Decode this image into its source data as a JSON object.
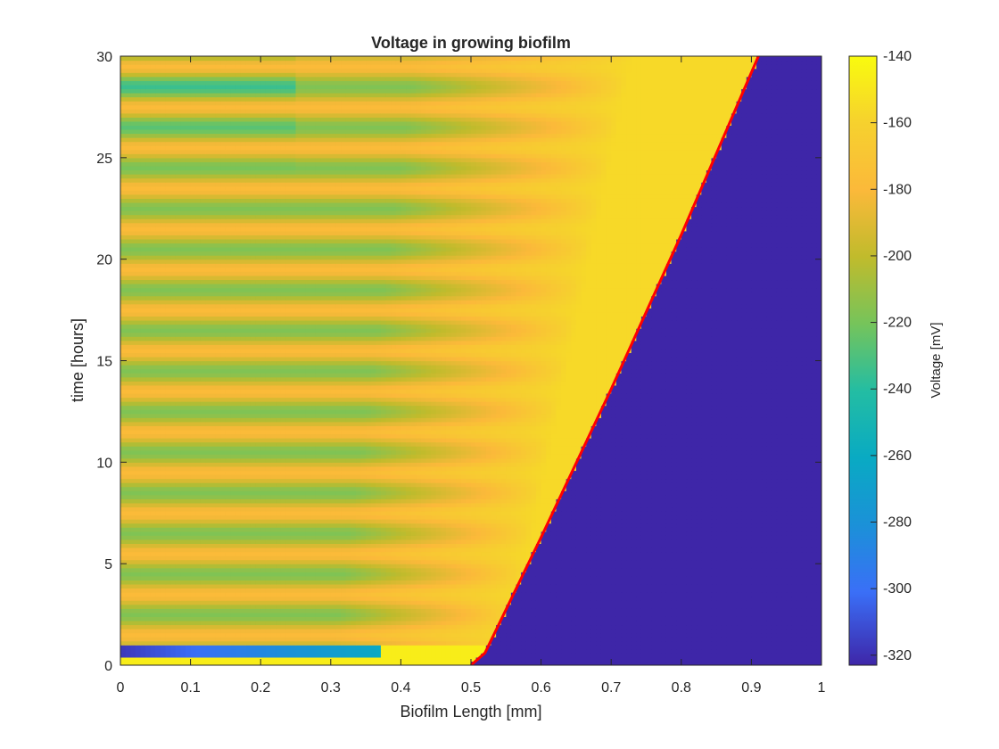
{
  "chart_data": {
    "type": "heatmap",
    "title": "Voltage in growing biofilm",
    "xlabel": "Biofilm Length [mm]",
    "ylabel": "time [hours]",
    "xlim": [
      0,
      1
    ],
    "ylim": [
      0,
      30
    ],
    "xticks": [
      "0",
      "0.1",
      "0.2",
      "0.3",
      "0.4",
      "0.5",
      "0.6",
      "0.7",
      "0.8",
      "0.9",
      "1"
    ],
    "yticks": [
      "0",
      "5",
      "10",
      "15",
      "20",
      "25",
      "30"
    ],
    "grid": false,
    "colorbar": {
      "label": "Voltage [mV]",
      "range": [
        -323,
        -140
      ],
      "ticks": [
        "-140",
        "-160",
        "-180",
        "-200",
        "-220",
        "-240",
        "-260",
        "-280",
        "-300",
        "-320"
      ],
      "colormap": "parula"
    },
    "biofilm_edge": {
      "color": "#ff0000",
      "points": [
        [
          0.5,
          0
        ],
        [
          0.52,
          0.6
        ],
        [
          0.6,
          6.3
        ],
        [
          0.7,
          13.6
        ],
        [
          0.8,
          21.2
        ],
        [
          0.91,
          30
        ]
      ]
    },
    "outside_value_mV": -323,
    "band_period_hours": 2,
    "notes_values": {
      "bottom_strip_mV": -145,
      "band_low_mV": -210,
      "band_high_mV": -168,
      "interior_mV": -152,
      "initial_dip_mV": -318
    }
  }
}
